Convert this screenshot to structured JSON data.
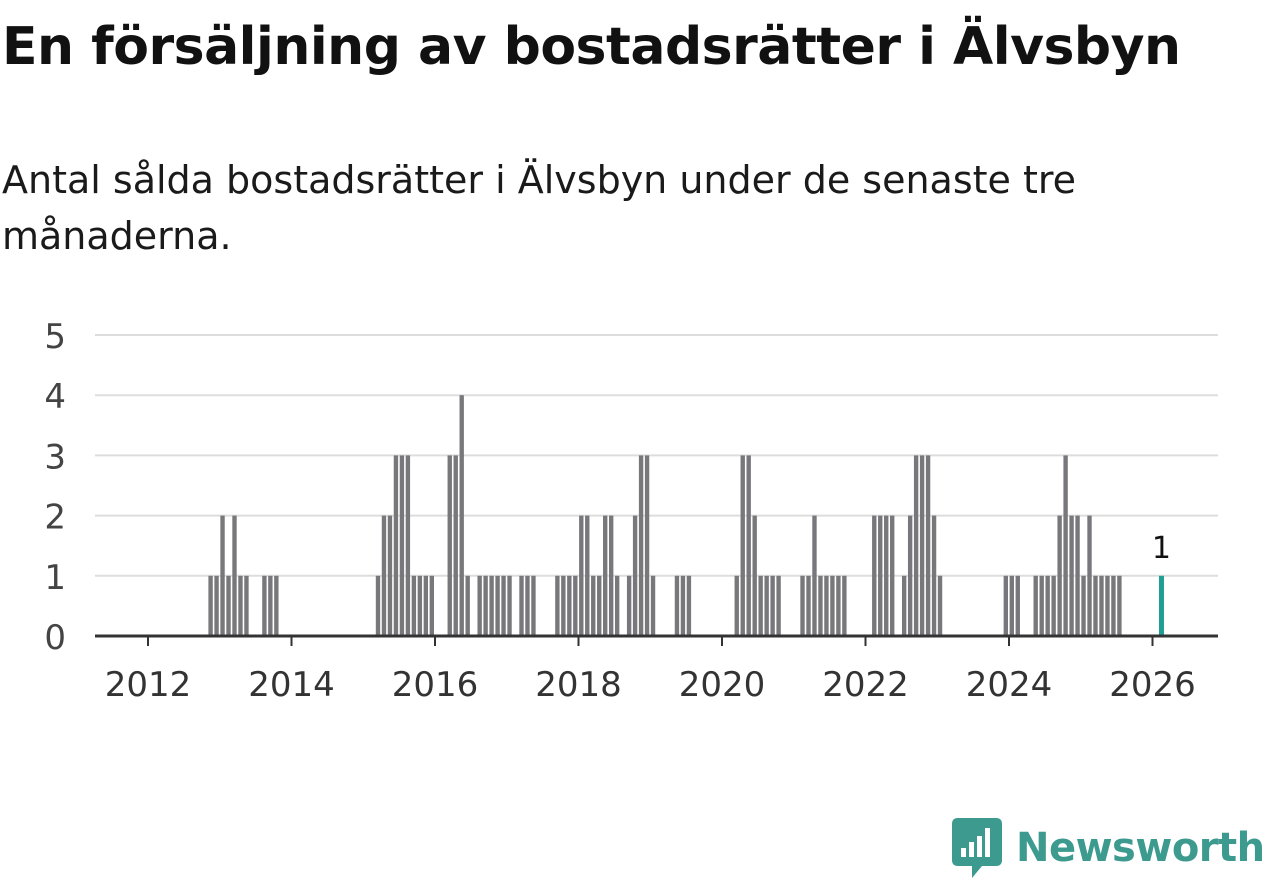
{
  "title": "En försäljning av bostadsrätter i Älvsbyn",
  "subtitle": "Antal sålda bostadsrätter i Älvsbyn under de senaste tre månaderna.",
  "brand": "Newsworthy",
  "colors": {
    "bar": "#78787c",
    "highlight": "#1f9e94",
    "grid": "#dddddd",
    "axis": "#333333",
    "brand": "#3d9a8f"
  },
  "chart_data": {
    "type": "bar",
    "x_ticks": [
      "2012",
      "2014",
      "2016",
      "2018",
      "2020",
      "2022",
      "2024",
      "2026"
    ],
    "y_ticks": [
      "0",
      "1",
      "2",
      "3",
      "4",
      "5"
    ],
    "ylim": [
      0,
      5
    ],
    "grid": true,
    "annotation": {
      "date": "2026-02",
      "label": "1"
    },
    "series": [
      {
        "values": [
          {
            "date": "2012-11",
            "value": 1
          },
          {
            "date": "2012-12",
            "value": 1
          },
          {
            "date": "2013-01",
            "value": 2
          },
          {
            "date": "2013-02",
            "value": 1
          },
          {
            "date": "2013-03",
            "value": 2
          },
          {
            "date": "2013-04",
            "value": 1
          },
          {
            "date": "2013-05",
            "value": 1
          },
          {
            "date": "2013-08",
            "value": 1
          },
          {
            "date": "2013-09",
            "value": 1
          },
          {
            "date": "2013-10",
            "value": 1
          },
          {
            "date": "2015-03",
            "value": 1
          },
          {
            "date": "2015-04",
            "value": 2
          },
          {
            "date": "2015-05",
            "value": 2
          },
          {
            "date": "2015-06",
            "value": 3
          },
          {
            "date": "2015-07",
            "value": 3
          },
          {
            "date": "2015-08",
            "value": 3
          },
          {
            "date": "2015-09",
            "value": 1
          },
          {
            "date": "2015-10",
            "value": 1
          },
          {
            "date": "2015-11",
            "value": 1
          },
          {
            "date": "2015-12",
            "value": 1
          },
          {
            "date": "2016-03",
            "value": 3
          },
          {
            "date": "2016-04",
            "value": 3
          },
          {
            "date": "2016-05",
            "value": 4
          },
          {
            "date": "2016-06",
            "value": 1
          },
          {
            "date": "2016-08",
            "value": 1
          },
          {
            "date": "2016-09",
            "value": 1
          },
          {
            "date": "2016-10",
            "value": 1
          },
          {
            "date": "2016-11",
            "value": 1
          },
          {
            "date": "2016-12",
            "value": 1
          },
          {
            "date": "2017-01",
            "value": 1
          },
          {
            "date": "2017-03",
            "value": 1
          },
          {
            "date": "2017-04",
            "value": 1
          },
          {
            "date": "2017-05",
            "value": 1
          },
          {
            "date": "2017-09",
            "value": 1
          },
          {
            "date": "2017-10",
            "value": 1
          },
          {
            "date": "2017-11",
            "value": 1
          },
          {
            "date": "2017-12",
            "value": 1
          },
          {
            "date": "2018-01",
            "value": 2
          },
          {
            "date": "2018-02",
            "value": 2
          },
          {
            "date": "2018-03",
            "value": 1
          },
          {
            "date": "2018-04",
            "value": 1
          },
          {
            "date": "2018-05",
            "value": 2
          },
          {
            "date": "2018-06",
            "value": 2
          },
          {
            "date": "2018-07",
            "value": 1
          },
          {
            "date": "2018-09",
            "value": 1
          },
          {
            "date": "2018-10",
            "value": 2
          },
          {
            "date": "2018-11",
            "value": 3
          },
          {
            "date": "2018-12",
            "value": 3
          },
          {
            "date": "2019-01",
            "value": 1
          },
          {
            "date": "2019-05",
            "value": 1
          },
          {
            "date": "2019-06",
            "value": 1
          },
          {
            "date": "2019-07",
            "value": 1
          },
          {
            "date": "2020-03",
            "value": 1
          },
          {
            "date": "2020-04",
            "value": 3
          },
          {
            "date": "2020-05",
            "value": 3
          },
          {
            "date": "2020-06",
            "value": 2
          },
          {
            "date": "2020-07",
            "value": 1
          },
          {
            "date": "2020-08",
            "value": 1
          },
          {
            "date": "2020-09",
            "value": 1
          },
          {
            "date": "2020-10",
            "value": 1
          },
          {
            "date": "2021-02",
            "value": 1
          },
          {
            "date": "2021-03",
            "value": 1
          },
          {
            "date": "2021-04",
            "value": 2
          },
          {
            "date": "2021-05",
            "value": 1
          },
          {
            "date": "2021-06",
            "value": 1
          },
          {
            "date": "2021-07",
            "value": 1
          },
          {
            "date": "2021-08",
            "value": 1
          },
          {
            "date": "2021-09",
            "value": 1
          },
          {
            "date": "2022-02",
            "value": 2
          },
          {
            "date": "2022-03",
            "value": 2
          },
          {
            "date": "2022-04",
            "value": 2
          },
          {
            "date": "2022-05",
            "value": 2
          },
          {
            "date": "2022-07",
            "value": 1
          },
          {
            "date": "2022-08",
            "value": 2
          },
          {
            "date": "2022-09",
            "value": 3
          },
          {
            "date": "2022-10",
            "value": 3
          },
          {
            "date": "2022-11",
            "value": 3
          },
          {
            "date": "2022-12",
            "value": 2
          },
          {
            "date": "2023-01",
            "value": 1
          },
          {
            "date": "2023-12",
            "value": 1
          },
          {
            "date": "2024-01",
            "value": 1
          },
          {
            "date": "2024-02",
            "value": 1
          },
          {
            "date": "2024-05",
            "value": 1
          },
          {
            "date": "2024-06",
            "value": 1
          },
          {
            "date": "2024-07",
            "value": 1
          },
          {
            "date": "2024-08",
            "value": 1
          },
          {
            "date": "2024-09",
            "value": 2
          },
          {
            "date": "2024-10",
            "value": 3
          },
          {
            "date": "2024-11",
            "value": 2
          },
          {
            "date": "2024-12",
            "value": 2
          },
          {
            "date": "2025-01",
            "value": 1
          },
          {
            "date": "2025-02",
            "value": 2
          },
          {
            "date": "2025-03",
            "value": 1
          },
          {
            "date": "2025-04",
            "value": 1
          },
          {
            "date": "2025-05",
            "value": 1
          },
          {
            "date": "2025-06",
            "value": 1
          },
          {
            "date": "2025-07",
            "value": 1
          },
          {
            "date": "2026-02",
            "value": 1,
            "highlight": true
          }
        ]
      }
    ]
  }
}
